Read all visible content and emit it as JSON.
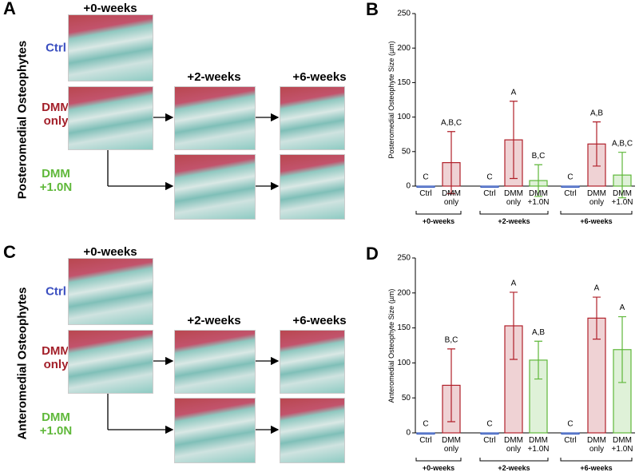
{
  "figure": {
    "left_panels": [
      {
        "letter": "A",
        "title": "Posteromedial Osteophytes",
        "timepoints": [
          "+0-weeks",
          "+2-weeks",
          "+6-weeks"
        ],
        "rows": [
          "Ctrl",
          "DMM only",
          "DMM +1.0N"
        ]
      },
      {
        "letter": "C",
        "title": "Anteromedial Osteophytes",
        "timepoints": [
          "+0-weeks",
          "+2-weeks",
          "+6-weeks"
        ],
        "rows": [
          "Ctrl",
          "DMM only",
          "DMM +1.0N"
        ]
      }
    ],
    "chart_letters": [
      "B",
      "D"
    ]
  },
  "chart_data": [
    {
      "type": "bar",
      "y_label": "Posteromedial Osteophyte Size (µm)",
      "ylim": [
        0,
        250
      ],
      "yticks": [
        0,
        50,
        100,
        150,
        200,
        250
      ],
      "groups": [
        {
          "name": "+0-weeks",
          "categories": [
            "Ctrl",
            "DMM only"
          ],
          "colors": [
            "#3b5fc0",
            "#b0202a"
          ],
          "values": [
            0,
            34
          ],
          "errors": [
            null,
            45
          ],
          "labels": [
            "C",
            "A,B,C"
          ]
        },
        {
          "name": "+2-weeks",
          "categories": [
            "Ctrl",
            "DMM only",
            "DMM +1.0N"
          ],
          "colors": [
            "#3b5fc0",
            "#b0202a",
            "#5fb83a"
          ],
          "values": [
            0,
            67,
            8
          ],
          "errors": [
            null,
            56,
            23
          ],
          "labels": [
            "C",
            "A",
            "B,C"
          ]
        },
        {
          "name": "+6-weeks",
          "categories": [
            "Ctrl",
            "DMM only",
            "DMM +1.0N"
          ],
          "colors": [
            "#3b5fc0",
            "#b0202a",
            "#5fb83a"
          ],
          "values": [
            0,
            61,
            16
          ],
          "errors": [
            null,
            32,
            33
          ],
          "labels": [
            "C",
            "A,B",
            "A,B,C"
          ]
        }
      ]
    },
    {
      "type": "bar",
      "y_label": "Anteromedial Osteophyte Size (µm)",
      "ylim": [
        0,
        250
      ],
      "yticks": [
        0,
        50,
        100,
        150,
        200,
        250
      ],
      "groups": [
        {
          "name": "+0-weeks",
          "categories": [
            "Ctrl",
            "DMM only"
          ],
          "colors": [
            "#3b5fc0",
            "#b0202a"
          ],
          "values": [
            0,
            68
          ],
          "errors": [
            null,
            52
          ],
          "labels": [
            "C",
            "B,C"
          ]
        },
        {
          "name": "+2-weeks",
          "categories": [
            "Ctrl",
            "DMM only",
            "DMM +1.0N"
          ],
          "colors": [
            "#3b5fc0",
            "#b0202a",
            "#5fb83a"
          ],
          "values": [
            0,
            153,
            104
          ],
          "errors": [
            null,
            48,
            27
          ],
          "labels": [
            "C",
            "A",
            "A,B"
          ]
        },
        {
          "name": "+6-weeks",
          "categories": [
            "Ctrl",
            "DMM only",
            "DMM +1.0N"
          ],
          "colors": [
            "#3b5fc0",
            "#b0202a",
            "#5fb83a"
          ],
          "values": [
            0,
            164,
            119
          ],
          "errors": [
            null,
            30,
            47
          ],
          "labels": [
            "C",
            "A",
            "A"
          ]
        }
      ]
    }
  ]
}
